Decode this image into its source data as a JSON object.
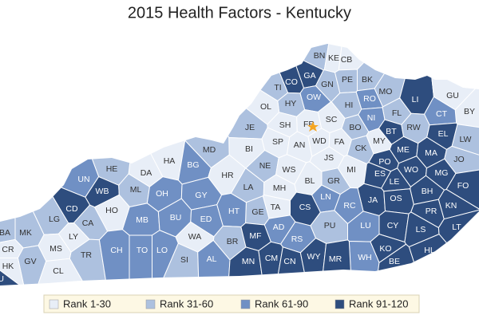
{
  "title": "2015 Health Factors - Kentucky",
  "legend": [
    {
      "label": "Rank 1-30",
      "color": "#e8eef7"
    },
    {
      "label": "Rank 31-60",
      "color": "#adc1df"
    },
    {
      "label": "Rank 61-90",
      "color": "#7090c4"
    },
    {
      "label": "Rank 91-120",
      "color": "#2e4d7e"
    }
  ],
  "counties": [
    {
      "label": "BN",
      "color": "#adc1df"
    },
    {
      "label": "KE",
      "color": "#e8eef7"
    },
    {
      "label": "CB",
      "color": "#e8eef7"
    },
    {
      "label": "GA",
      "color": "#2e4d7e"
    },
    {
      "label": "CO",
      "color": "#2e4d7e"
    },
    {
      "label": "TI",
      "color": "#adc1df"
    },
    {
      "label": "GN",
      "color": "#adc1df"
    },
    {
      "label": "PE",
      "color": "#adc1df"
    },
    {
      "label": "BK",
      "color": "#adc1df"
    },
    {
      "label": "HY",
      "color": "#adc1df"
    },
    {
      "label": "OW",
      "color": "#7090c4"
    },
    {
      "label": "RO",
      "color": "#7090c4"
    },
    {
      "label": "MO",
      "color": "#adc1df"
    },
    {
      "label": "LI",
      "color": "#2e4d7e"
    },
    {
      "label": "GU",
      "color": "#e8eef7"
    },
    {
      "label": "OL",
      "color": "#e8eef7"
    },
    {
      "label": "HI",
      "color": "#adc1df"
    },
    {
      "label": "BY",
      "color": "#e8eef7"
    },
    {
      "label": "FL",
      "color": "#adc1df"
    },
    {
      "label": "NI",
      "color": "#7090c4"
    },
    {
      "label": "CT",
      "color": "#7090c4"
    },
    {
      "label": "SH",
      "color": "#e8eef7"
    },
    {
      "label": "FR",
      "color": "#e8eef7"
    },
    {
      "label": "SC",
      "color": "#e8eef7"
    },
    {
      "label": "BT",
      "color": "#2e4d7e"
    },
    {
      "label": "RW",
      "color": "#adc1df"
    },
    {
      "label": "JE",
      "color": "#adc1df"
    },
    {
      "label": "BO",
      "color": "#adc1df"
    },
    {
      "label": "WD",
      "color": "#e8eef7"
    },
    {
      "label": "FA",
      "color": "#e8eef7"
    },
    {
      "label": "MY",
      "color": "#e8eef7"
    },
    {
      "label": "CK",
      "color": "#adc1df"
    },
    {
      "label": "LW",
      "color": "#adc1df"
    },
    {
      "label": "SP",
      "color": "#e8eef7"
    },
    {
      "label": "AN",
      "color": "#e8eef7"
    },
    {
      "label": "ME",
      "color": "#2e4d7e"
    },
    {
      "label": "MA",
      "color": "#2e4d7e"
    },
    {
      "label": "EL",
      "color": "#2e4d7e"
    },
    {
      "label": "BI",
      "color": "#e8eef7"
    },
    {
      "label": "MD",
      "color": "#adc1df"
    },
    {
      "label": "HA",
      "color": "#e8eef7"
    },
    {
      "label": "PO",
      "color": "#2e4d7e"
    },
    {
      "label": "JO",
      "color": "#adc1df"
    },
    {
      "label": "NE",
      "color": "#adc1df"
    },
    {
      "label": "JS",
      "color": "#e8eef7"
    },
    {
      "label": "MI",
      "color": "#e8eef7"
    },
    {
      "label": "WS",
      "color": "#e8eef7"
    },
    {
      "label": "DA",
      "color": "#e8eef7"
    },
    {
      "label": "HE",
      "color": "#adc1df"
    },
    {
      "label": "BG",
      "color": "#7090c4"
    },
    {
      "label": "HR",
      "color": "#e8eef7"
    },
    {
      "label": "ES",
      "color": "#2e4d7e"
    },
    {
      "label": "WO",
      "color": "#2e4d7e"
    },
    {
      "label": "MG",
      "color": "#2e4d7e"
    },
    {
      "label": "UN",
      "color": "#7090c4"
    },
    {
      "label": "LA",
      "color": "#adc1df"
    },
    {
      "label": "BL",
      "color": "#e8eef7"
    },
    {
      "label": "MH",
      "color": "#e8eef7"
    },
    {
      "label": "GR",
      "color": "#adc1df"
    },
    {
      "label": "LE",
      "color": "#2e4d7e"
    },
    {
      "label": "FO",
      "color": "#2e4d7e"
    },
    {
      "label": "WB",
      "color": "#2e4d7e"
    },
    {
      "label": "ML",
      "color": "#adc1df"
    },
    {
      "label": "OH",
      "color": "#7090c4"
    },
    {
      "label": "GY",
      "color": "#7090c4"
    },
    {
      "label": "JA",
      "color": "#2e4d7e"
    },
    {
      "label": "BH",
      "color": "#2e4d7e"
    },
    {
      "label": "OS",
      "color": "#2e4d7e"
    },
    {
      "label": "CD",
      "color": "#2e4d7e"
    },
    {
      "label": "HO",
      "color": "#e8eef7"
    },
    {
      "label": "LN",
      "color": "#7090c4"
    },
    {
      "label": "TA",
      "color": "#e8eef7"
    },
    {
      "label": "GE",
      "color": "#adc1df"
    },
    {
      "label": "CS",
      "color": "#2e4d7e"
    },
    {
      "label": "RC",
      "color": "#7090c4"
    },
    {
      "label": "HT",
      "color": "#7090c4"
    },
    {
      "label": "KN",
      "color": "#2e4d7e"
    },
    {
      "label": "PR",
      "color": "#2e4d7e"
    },
    {
      "label": "LG",
      "color": "#adc1df"
    },
    {
      "label": "CA",
      "color": "#adc1df"
    },
    {
      "label": "MB",
      "color": "#7090c4"
    },
    {
      "label": "BU",
      "color": "#7090c4"
    },
    {
      "label": "ED",
      "color": "#7090c4"
    },
    {
      "label": "CY",
      "color": "#2e4d7e"
    },
    {
      "label": "BA",
      "color": "#adc1df"
    },
    {
      "label": "MK",
      "color": "#adc1df"
    },
    {
      "label": "LY",
      "color": "#e8eef7"
    },
    {
      "label": "AD",
      "color": "#7090c4"
    },
    {
      "label": "PU",
      "color": "#adc1df"
    },
    {
      "label": "LU",
      "color": "#7090c4"
    },
    {
      "label": "LS",
      "color": "#2e4d7e"
    },
    {
      "label": "LT",
      "color": "#2e4d7e"
    },
    {
      "label": "BR",
      "color": "#adc1df"
    },
    {
      "label": "MF",
      "color": "#2e4d7e"
    },
    {
      "label": "WA",
      "color": "#e8eef7"
    },
    {
      "label": "RS",
      "color": "#7090c4"
    },
    {
      "label": "TR",
      "color": "#adc1df"
    },
    {
      "label": "CH",
      "color": "#7090c4"
    },
    {
      "label": "TO",
      "color": "#7090c4"
    },
    {
      "label": "LO",
      "color": "#7090c4"
    },
    {
      "label": "MS",
      "color": "#e8eef7"
    },
    {
      "label": "CR",
      "color": "#e8eef7"
    },
    {
      "label": "KO",
      "color": "#2e4d7e"
    },
    {
      "label": "WH",
      "color": "#7090c4"
    },
    {
      "label": "HL",
      "color": "#2e4d7e"
    },
    {
      "label": "GV",
      "color": "#adc1df"
    },
    {
      "label": "HK",
      "color": "#e8eef7"
    },
    {
      "label": "CL",
      "color": "#e8eef7"
    },
    {
      "label": "SI",
      "color": "#adc1df"
    },
    {
      "label": "AL",
      "color": "#7090c4"
    },
    {
      "label": "MN",
      "color": "#2e4d7e"
    },
    {
      "label": "CM",
      "color": "#2e4d7e"
    },
    {
      "label": "CN",
      "color": "#2e4d7e"
    },
    {
      "label": "WY",
      "color": "#2e4d7e"
    },
    {
      "label": "MR",
      "color": "#2e4d7e"
    },
    {
      "label": "BE",
      "color": "#2e4d7e"
    },
    {
      "label": "FU",
      "color": "#2e4d7e"
    }
  ]
}
